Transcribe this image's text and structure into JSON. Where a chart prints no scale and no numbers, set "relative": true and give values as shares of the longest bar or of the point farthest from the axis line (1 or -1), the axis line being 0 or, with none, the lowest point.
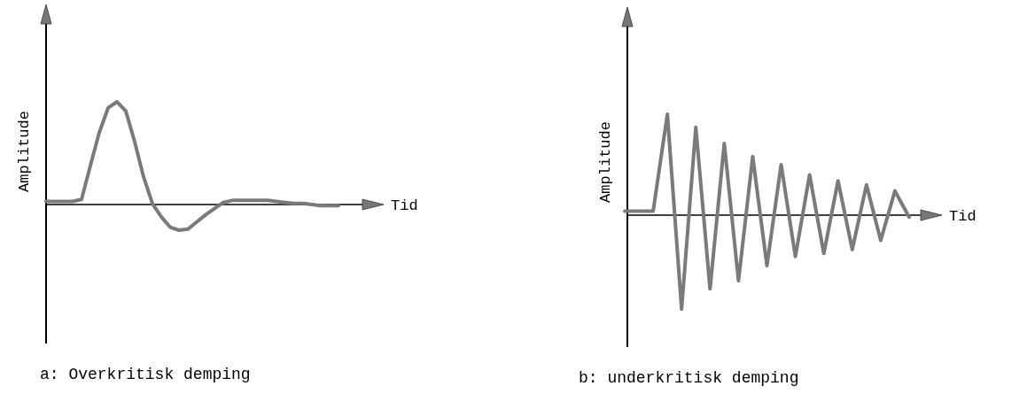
{
  "chart_data": [
    {
      "type": "line",
      "title": "a: Overkritisk demping",
      "xlabel": "Tid",
      "ylabel": "Amplitude",
      "relative": true,
      "categories": [
        null,
        null,
        null,
        null,
        null,
        null,
        null,
        null,
        null,
        null,
        null,
        null,
        null,
        null,
        null,
        null,
        null,
        null,
        null,
        null,
        null,
        null,
        null,
        null,
        null,
        null,
        null,
        null,
        null,
        null,
        null,
        null,
        null,
        null
      ],
      "series": [
        {
          "color": "#7a7a7a",
          "values": [
            0.03,
            0.03,
            0.03,
            0.03,
            0.05,
            0.38,
            0.7,
            0.94,
            1.0,
            0.91,
            0.61,
            0.27,
            0.01,
            -0.12,
            -0.22,
            -0.25,
            -0.24,
            -0.17,
            -0.1,
            -0.04,
            0.02,
            0.04,
            0.04,
            0.04,
            0.04,
            0.04,
            0.03,
            0.02,
            0.01,
            0.01,
            0,
            -0.01,
            -0.01,
            -0.01
          ]
        }
      ]
    },
    {
      "type": "line",
      "title": "b: underkritisk demping",
      "xlabel": "Tid",
      "ylabel": "Amplitude",
      "relative": true,
      "categories": [
        null,
        null,
        null,
        null,
        null,
        null,
        null,
        null,
        null,
        null,
        null,
        null,
        null,
        null,
        null,
        null,
        null,
        null,
        null,
        null,
        null
      ],
      "series": [
        {
          "color": "#7a7a7a",
          "values": [
            0.04,
            0.04,
            0.04,
            1.0,
            -0.93,
            0.87,
            -0.73,
            0.71,
            -0.65,
            0.58,
            -0.5,
            0.5,
            -0.41,
            0.4,
            -0.38,
            0.34,
            -0.34,
            0.3,
            -0.25,
            0.24,
            -0.02
          ]
        }
      ]
    }
  ]
}
